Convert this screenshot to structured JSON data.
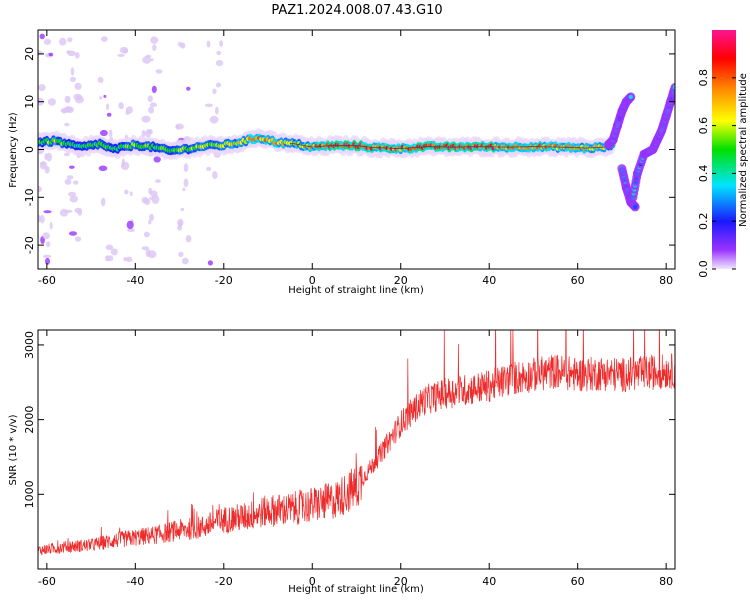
{
  "figure": {
    "title": "PAZ1.2024.008.07.43.G10"
  },
  "chart_data": [
    {
      "type": "heatmap",
      "panel": "spectrogram",
      "xlabel": "Height of straight line (km)",
      "ylabel": "Frequency (Hz)",
      "xlim": [
        -62,
        82
      ],
      "ylim": [
        -25,
        25
      ],
      "x_ticks": [
        -60,
        -40,
        -20,
        0,
        20,
        40,
        60,
        80
      ],
      "y_ticks": [
        -20,
        -10,
        0,
        10,
        20
      ],
      "colorbar": {
        "label": "Normalized spectral amplitude",
        "range": [
          0.0,
          1.0
        ],
        "ticks": [
          0.0,
          0.2,
          0.4,
          0.6,
          0.8
        ],
        "colormap": [
          "#f2e6fb",
          "#9933ff",
          "#1a1aff",
          "#00e5ff",
          "#00e000",
          "#ffff00",
          "#ff8c00",
          "#ff0000",
          "#ff1493"
        ]
      },
      "ridge": {
        "x": [
          -62,
          -58,
          -55,
          -52,
          -48,
          -45,
          -40,
          -36,
          -32,
          -28,
          -24,
          -20,
          -16,
          -12,
          -8,
          -4,
          0,
          4,
          10,
          14,
          20,
          26,
          32,
          38,
          44,
          50,
          56,
          62,
          66,
          68
        ],
        "freq": [
          1.5,
          1.8,
          1.0,
          0.5,
          1.2,
          0.0,
          1.0,
          0.5,
          -0.3,
          0.2,
          0.8,
          0.9,
          1.6,
          2.5,
          1.5,
          1.2,
          0.5,
          0.8,
          0.8,
          0.4,
          0.2,
          0.6,
          0.5,
          0.6,
          0.5,
          0.6,
          0.5,
          0.3,
          0.5,
          1.0
        ],
        "amplitude": [
          0.45,
          0.6,
          0.5,
          0.45,
          0.5,
          0.45,
          0.55,
          0.5,
          0.5,
          0.55,
          0.6,
          0.6,
          0.65,
          0.75,
          0.7,
          0.65,
          0.7,
          0.85,
          0.9,
          0.8,
          0.8,
          0.85,
          0.9,
          0.85,
          0.75,
          0.75,
          0.7,
          0.7,
          0.65,
          0.6
        ]
      },
      "hooks": [
        {
          "x": [
            67,
            68,
            69,
            70,
            71,
            72
          ],
          "freq": [
            1,
            2,
            5,
            8,
            10,
            11
          ]
        },
        {
          "x": [
            70,
            71,
            72,
            73
          ],
          "freq": [
            -4,
            -8,
            -11,
            -12
          ]
        },
        {
          "x": [
            72.5,
            73.5,
            75,
            77
          ],
          "freq": [
            -10,
            -5,
            -1,
            0
          ]
        },
        {
          "x": [
            77,
            78,
            79,
            80,
            81,
            82
          ],
          "freq": [
            0,
            2,
            4,
            7,
            10,
            13
          ]
        }
      ]
    },
    {
      "type": "line",
      "panel": "snr",
      "xlabel": "Height of straight line (km)",
      "ylabel": "SNR (10 * v/v)",
      "xlim": [
        -62,
        82
      ],
      "ylim": [
        0,
        3200
      ],
      "x_ticks": [
        -60,
        -40,
        -20,
        0,
        20,
        40,
        60,
        80
      ],
      "y_ticks": [
        1000,
        2000,
        3000
      ],
      "line_color": "#ee2b2b",
      "series": [
        {
          "x": [
            -62,
            -55,
            -50,
            -45,
            -40,
            -35,
            -30,
            -25,
            -20,
            -15,
            -10,
            -5,
            0,
            5,
            10,
            15,
            20,
            25,
            30,
            35,
            40,
            45,
            50,
            55,
            60,
            65,
            70,
            75,
            80,
            82
          ],
          "values": [
            250,
            300,
            320,
            380,
            420,
            460,
            520,
            560,
            660,
            700,
            780,
            800,
            860,
            920,
            1100,
            1500,
            1950,
            2250,
            2350,
            2400,
            2450,
            2550,
            2600,
            2650,
            2600,
            2620,
            2600,
            2620,
            2650,
            2650
          ]
        }
      ]
    }
  ]
}
